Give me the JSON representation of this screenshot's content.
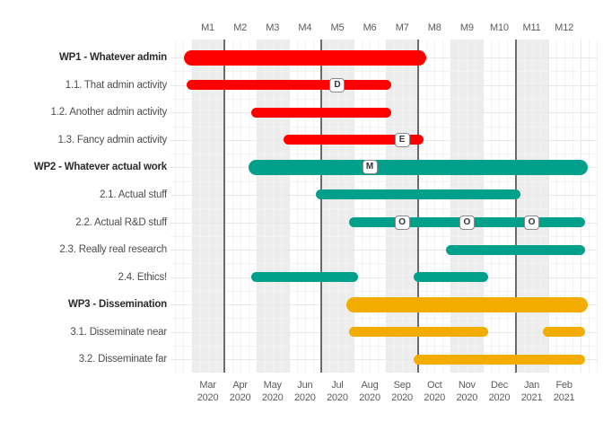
{
  "chart_data": {
    "type": "gantt",
    "title": "",
    "x_axis_top_label_prefix": "M",
    "months": [
      {
        "m": "M1",
        "name": "Mar",
        "year": "2020"
      },
      {
        "m": "M2",
        "name": "Apr",
        "year": "2020"
      },
      {
        "m": "M3",
        "name": "May",
        "year": "2020"
      },
      {
        "m": "M4",
        "name": "Jun",
        "year": "2020"
      },
      {
        "m": "M5",
        "name": "Jul",
        "year": "2020"
      },
      {
        "m": "M6",
        "name": "Aug",
        "year": "2020"
      },
      {
        "m": "M7",
        "name": "Sep",
        "year": "2020"
      },
      {
        "m": "M8",
        "name": "Oct",
        "year": "2020"
      },
      {
        "m": "M9",
        "name": "Nov",
        "year": "2020"
      },
      {
        "m": "M10",
        "name": "Dec",
        "year": "2020"
      },
      {
        "m": "M11",
        "name": "Jan",
        "year": "2021"
      },
      {
        "m": "M12",
        "name": "Feb",
        "year": "2021"
      }
    ],
    "rows": [
      {
        "label": "WP1 - Whatever admin",
        "bold": true,
        "color": "#FF0000",
        "bars": [
          [
            1,
            7
          ]
        ]
      },
      {
        "label": "1.1. That admin activity",
        "bold": false,
        "color": "#FF0000",
        "bars": [
          [
            1,
            6
          ]
        ],
        "spots": [
          {
            "label": "D",
            "month": 5
          }
        ]
      },
      {
        "label": "1.2. Another admin activity",
        "bold": false,
        "color": "#FF0000",
        "bars": [
          [
            3,
            6
          ]
        ]
      },
      {
        "label": "1.3. Fancy admin activity",
        "bold": false,
        "color": "#FF0000",
        "bars": [
          [
            4,
            7
          ]
        ],
        "spots": [
          {
            "label": "E",
            "month": 7
          }
        ]
      },
      {
        "label": "WP2 - Whatever actual work",
        "bold": true,
        "color": "#00A08A",
        "bars": [
          [
            3,
            12
          ]
        ],
        "spots": [
          {
            "label": "M",
            "month": 6
          }
        ]
      },
      {
        "label": "2.1. Actual stuff",
        "bold": false,
        "color": "#00A08A",
        "bars": [
          [
            5,
            10
          ]
        ]
      },
      {
        "label": "2.2. Actual R&D stuff",
        "bold": false,
        "color": "#00A08A",
        "bars": [
          [
            6,
            12
          ]
        ],
        "spots": [
          {
            "label": "O",
            "month": 7
          },
          {
            "label": "O",
            "month": 9
          },
          {
            "label": "O",
            "month": 11
          }
        ]
      },
      {
        "label": "2.3. Really real research",
        "bold": false,
        "color": "#00A08A",
        "bars": [
          [
            9,
            12
          ]
        ]
      },
      {
        "label": "2.4. Ethics!",
        "bold": false,
        "color": "#00A08A",
        "bars": [
          [
            3,
            5
          ],
          [
            8,
            9
          ]
        ]
      },
      {
        "label": "WP3 - Dissemination",
        "bold": true,
        "color": "#F2AD00",
        "bars": [
          [
            6,
            12
          ]
        ]
      },
      {
        "label": "3.1. Disseminate near",
        "bold": false,
        "color": "#F2AD00",
        "bars": [
          [
            6,
            9
          ],
          [
            12,
            12
          ]
        ]
      },
      {
        "label": "3.2. Disseminate far",
        "bold": false,
        "color": "#F2AD00",
        "bars": [
          [
            8,
            12
          ]
        ]
      }
    ],
    "shaded_months": [
      1,
      3,
      5,
      7,
      9,
      11
    ],
    "quarter_lines_at_month_start": [
      2,
      5,
      8,
      11
    ],
    "colors": {
      "wp1": "#FF0000",
      "wp2": "#00A08A",
      "wp3": "#F2AD00",
      "stripe": "#EDEDED",
      "quarter_line": "#6B6B6B",
      "grid_major": "#E8E8E8",
      "grid_minor": "#F2F2F2",
      "axis_text": "#5A5A5A",
      "label_text": "#4D4D4D",
      "label_text_bold": "#2B2B2B",
      "spot_border": "#8A8A8A",
      "spot_text": "#333333"
    }
  }
}
